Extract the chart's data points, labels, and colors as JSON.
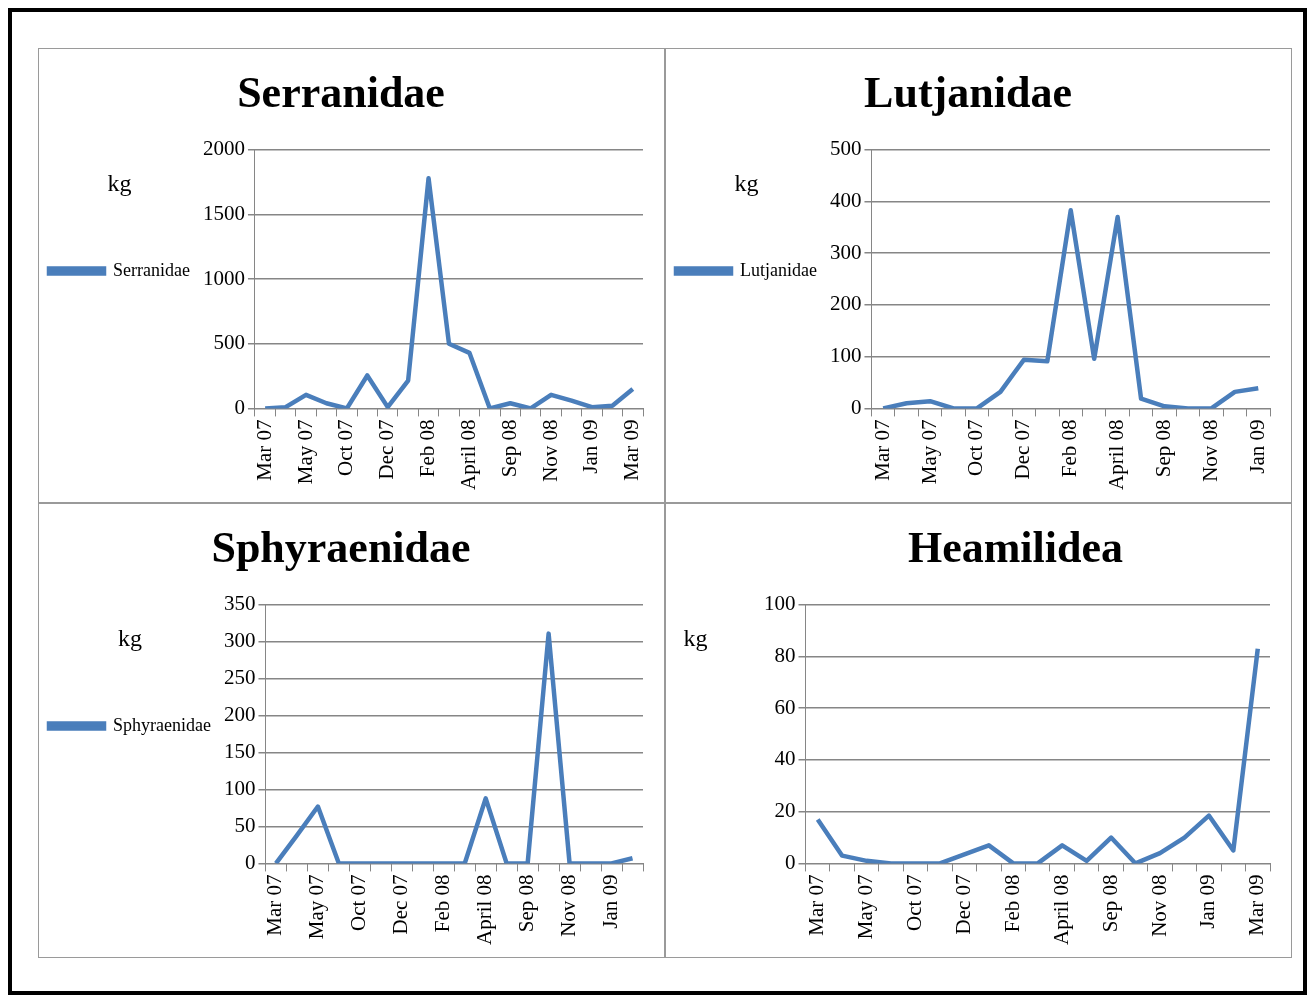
{
  "chart_data": [
    {
      "type": "line",
      "title": "Serranidae",
      "ylabel": "kg",
      "categories": [
        "Mar 07",
        null,
        "May 07",
        null,
        "Oct 07",
        null,
        "Dec 07",
        null,
        "Feb 08",
        null,
        "April 08",
        null,
        "Sep 08",
        null,
        "Nov 08",
        null,
        "Jan 09",
        null,
        "Mar 09"
      ],
      "series": [
        {
          "name": "Serranidae",
          "color": "#4a7ebb",
          "values": [
            0,
            10,
            105,
            40,
            0,
            255,
            10,
            215,
            1780,
            500,
            430,
            0,
            40,
            0,
            105,
            60,
            10,
            20,
            150
          ]
        }
      ],
      "ylim": [
        0,
        2000
      ],
      "yticks": [
        0,
        500,
        1000,
        1500,
        2000
      ],
      "grid": "y",
      "legend": "left",
      "marker": "none"
    },
    {
      "type": "line",
      "title": "Lutjanidae",
      "ylabel": "kg",
      "categories": [
        "Mar 07",
        null,
        "May 07",
        null,
        "Oct 07",
        null,
        "Dec 07",
        null,
        "Feb 08",
        null,
        "April 08",
        null,
        "Sep 08",
        null,
        "Nov 08",
        null,
        "Jan 09"
      ],
      "series": [
        {
          "name": "Lutjanidae",
          "color": "#4a7ebb",
          "values": [
            0,
            10,
            14,
            0,
            0,
            32,
            94,
            91,
            383,
            96,
            370,
            19,
            4,
            0,
            0,
            32,
            39
          ]
        }
      ],
      "ylim": [
        0,
        500
      ],
      "yticks": [
        0,
        100,
        200,
        300,
        400,
        500
      ],
      "grid": "y",
      "legend": "left",
      "marker": "none"
    },
    {
      "type": "line",
      "title": "Sphyraenidae",
      "ylabel": "kg",
      "categories": [
        "Mar 07",
        null,
        "May 07",
        null,
        "Oct 07",
        null,
        "Dec 07",
        null,
        "Feb 08",
        null,
        "April 08",
        null,
        "Sep 08",
        null,
        "Nov 08",
        null,
        "Jan 09",
        null
      ],
      "series": [
        {
          "name": "Sphyraenidae",
          "color": "#4a7ebb",
          "values": [
            0,
            38,
            77,
            0,
            0,
            0,
            0,
            0,
            0,
            0,
            88,
            0,
            0,
            311,
            0,
            0,
            0,
            7
          ]
        }
      ],
      "ylim": [
        0,
        350
      ],
      "yticks": [
        0,
        50,
        100,
        150,
        200,
        250,
        300,
        350
      ],
      "grid": "y",
      "legend": "left",
      "marker": "none"
    },
    {
      "type": "line",
      "title": "Heamilidea",
      "ylabel": "kg",
      "categories": [
        "Mar 07",
        null,
        "May 07",
        null,
        "Oct 07",
        null,
        "Dec 07",
        null,
        "Feb 08",
        null,
        "April 08",
        null,
        "Sep 08",
        null,
        "Nov 08",
        null,
        "Jan 09",
        null,
        "Mar 09"
      ],
      "series": [
        {
          "color": "#4a7ebb",
          "values": [
            17,
            3,
            1,
            0,
            0,
            0,
            3.5,
            7,
            0,
            0,
            7,
            1,
            10,
            0,
            4,
            10,
            18.5,
            5,
            83
          ]
        }
      ],
      "ylim": [
        0,
        100
      ],
      "yticks": [
        0,
        20,
        40,
        60,
        80,
        100
      ],
      "grid": "y",
      "legend": false,
      "marker": "none"
    }
  ]
}
